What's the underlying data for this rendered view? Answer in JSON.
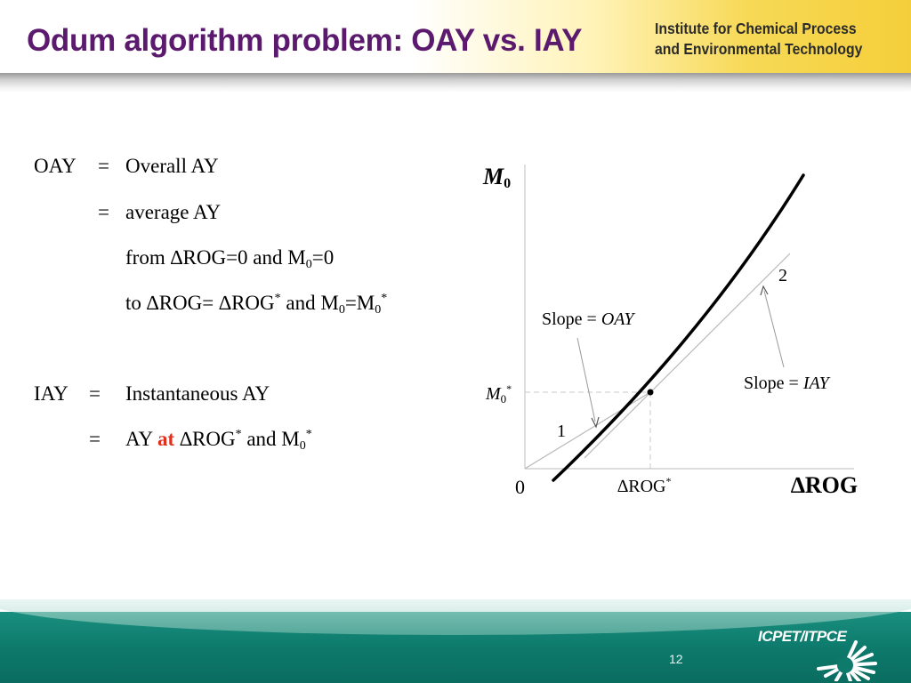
{
  "header": {
    "title": "Odum algorithm problem: OAY vs. IAY",
    "institute_line1": "Institute for Chemical Process",
    "institute_line2": "and Environmental Technology"
  },
  "definitions": {
    "oay_term": "OAY",
    "eq": "=",
    "oay_def1": "Overall AY",
    "oay_def2": "average AY",
    "from_a": "from ∆ROG=0 and M",
    "from_sub": "0",
    "from_b": "=0",
    "to_a": "to ∆ROG= ∆ROG",
    "to_sup1": "*",
    "to_b": " and M",
    "to_sub1": "0",
    "to_c": "=M",
    "to_sub2": "0",
    "to_sup2": "*",
    "iay_term": "IAY",
    "iay_def1": "Instantaneous AY",
    "iay_def2_a": "AY ",
    "iay_def2_at": "at",
    "iay_def2_b": " ∆ROG",
    "iay_sup1": "*",
    "iay_def2_c": " and M",
    "iay_sub": "0",
    "iay_sup2": "*"
  },
  "diagram": {
    "y_axis_label": "M",
    "y_axis_sub": "0",
    "y_marker": "M",
    "y_marker_sub": "0",
    "y_marker_sup": "*",
    "x_axis_label": "∆ROG",
    "x_marker": "∆ROG",
    "x_marker_sup": "*",
    "origin": "0",
    "slope_oay_prefix": "Slope = ",
    "slope_oay_italic": "OAY",
    "slope_iay_prefix": "Slope = ",
    "slope_iay_italic": "IAY",
    "line1_label": "1",
    "line2_label": "2"
  },
  "footer": {
    "page_number": "12",
    "logo": "ICPET/ITPCE"
  },
  "colors": {
    "title": "#5b1a6e",
    "accent_red": "#e0301e",
    "footer_teal": "#0d7a6c",
    "header_gold": "#f5cf3a"
  }
}
